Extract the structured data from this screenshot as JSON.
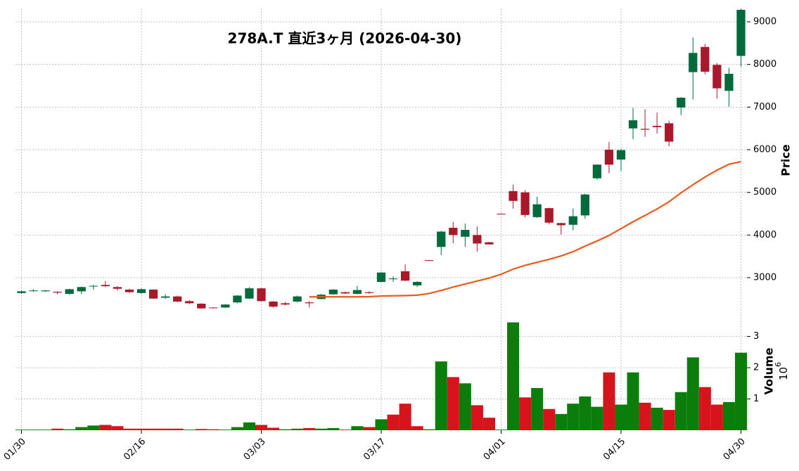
{
  "chart_data": {
    "type": "candlestick",
    "title": "278A.T  直近3ヶ月 (2026-04-30)",
    "up_color": "#006a3c",
    "down_color": "#a8192b",
    "open": [
      2640,
      2690,
      2680,
      2670,
      2620,
      2680,
      2800,
      2830,
      2780,
      2720,
      2640,
      2720,
      2530,
      2560,
      2450,
      2390,
      2300,
      2300,
      2420,
      2510,
      2750,
      2440,
      2400,
      2440,
      2420,
      2500,
      2610,
      2660,
      2620,
      2660,
      2900,
      2970,
      3150,
      2820,
      3410,
      3720,
      4170,
      3960,
      4000,
      3830,
      4500,
      5030,
      5000,
      4420,
      4630,
      4280,
      4240,
      4460,
      5330,
      6000,
      5770,
      6500,
      6490,
      6560,
      6620,
      6990,
      7820,
      8410,
      7990,
      7380,
      8200
    ],
    "high": [
      2700,
      2730,
      2710,
      2680,
      2740,
      2790,
      2830,
      2920,
      2800,
      2740,
      2750,
      2730,
      2610,
      2580,
      2470,
      2400,
      2310,
      2380,
      2590,
      2780,
      2760,
      2450,
      2430,
      2580,
      2450,
      2620,
      2730,
      2670,
      2810,
      2680,
      3130,
      3030,
      3310,
      2920,
      3415,
      4100,
      4310,
      4270,
      4200,
      3840,
      4510,
      5180,
      5050,
      4900,
      4640,
      4290,
      4620,
      4970,
      5660,
      6180,
      6020,
      6980,
      6950,
      6870,
      6680,
      7230,
      8630,
      8480,
      8030,
      7920,
      9300
    ],
    "low": [
      2620,
      2670,
      2670,
      2610,
      2600,
      2620,
      2720,
      2780,
      2700,
      2640,
      2620,
      2500,
      2500,
      2420,
      2380,
      2270,
      2280,
      2290,
      2400,
      2500,
      2440,
      2300,
      2350,
      2420,
      2300,
      2490,
      2600,
      2620,
      2610,
      2620,
      2890,
      2900,
      2920,
      2780,
      3395,
      3530,
      3810,
      3720,
      3610,
      3780,
      4490,
      4620,
      4420,
      4400,
      4250,
      4010,
      4110,
      4380,
      5300,
      5450,
      5500,
      6250,
      6300,
      6380,
      6080,
      6810,
      7180,
      7770,
      7200,
      7010,
      7950
    ],
    "close": [
      2680,
      2700,
      2700,
      2650,
      2730,
      2780,
      2810,
      2800,
      2740,
      2660,
      2730,
      2510,
      2560,
      2440,
      2400,
      2280,
      2290,
      2370,
      2580,
      2750,
      2450,
      2320,
      2370,
      2560,
      2400,
      2600,
      2720,
      2630,
      2710,
      2640,
      3120,
      2980,
      2930,
      2900,
      3400,
      4080,
      4000,
      4120,
      3800,
      3780,
      4490,
      4800,
      4470,
      4720,
      4290,
      4230,
      4440,
      4950,
      5650,
      5650,
      5990,
      6690,
      6470,
      6530,
      6190,
      7220,
      8270,
      7830,
      7440,
      7780,
      9280
    ],
    "moving_average": {
      "color": "#ea5a1c",
      "values": [
        null,
        null,
        null,
        null,
        null,
        null,
        null,
        null,
        null,
        null,
        null,
        null,
        null,
        null,
        null,
        null,
        null,
        null,
        null,
        null,
        null,
        null,
        null,
        null,
        2550,
        2550,
        2550,
        2550,
        2550,
        2555,
        2570,
        2575,
        2580,
        2590,
        2630,
        2700,
        2780,
        2850,
        2920,
        2990,
        3080,
        3200,
        3290,
        3360,
        3430,
        3510,
        3610,
        3740,
        3860,
        3990,
        4150,
        4310,
        4460,
        4610,
        4780,
        4990,
        5180,
        5360,
        5520,
        5660,
        5720
      ]
    },
    "xlim": [
      -0.5,
      60.5
    ],
    "xticks": [
      {
        "value": 0,
        "label": "01/30"
      },
      {
        "value": 10,
        "label": "02/16"
      },
      {
        "value": 20,
        "label": "03/03"
      },
      {
        "value": 30,
        "label": "03/17"
      },
      {
        "value": 40,
        "label": "04/01"
      },
      {
        "value": 50,
        "label": "04/15"
      },
      {
        "value": 60,
        "label": "04/30"
      }
    ],
    "ylim": [
      2258,
      9313
    ],
    "yticks": [
      3000,
      4000,
      5000,
      6000,
      7000,
      8000,
      9000
    ],
    "y_label": "Price",
    "grid": true,
    "volume": {
      "y_label": "Volume",
      "scale_base": "10",
      "scale_exponent": "6",
      "ylim": [
        0,
        3.8
      ],
      "yticks": [
        1,
        2,
        3
      ],
      "values": [
        0.02,
        0.02,
        0.02,
        0.05,
        0.03,
        0.1,
        0.15,
        0.17,
        0.13,
        0.05,
        0.05,
        0.05,
        0.05,
        0.05,
        0.02,
        0.04,
        0.03,
        0.02,
        0.1,
        0.25,
        0.17,
        0.08,
        0.03,
        0.05,
        0.07,
        0.05,
        0.07,
        0.02,
        0.13,
        0.1,
        0.35,
        0.5,
        0.85,
        0.13,
        0.03,
        2.2,
        1.7,
        1.5,
        0.8,
        0.4,
        0.02,
        3.45,
        1.05,
        1.35,
        0.68,
        0.52,
        0.85,
        1.08,
        0.75,
        1.85,
        0.82,
        1.85,
        0.88,
        0.72,
        0.65,
        1.22,
        2.33,
        1.38,
        0.82,
        0.9,
        2.48
      ],
      "colors": [
        "#0a7d0a",
        "#0a7d0a",
        "#0a7d0a",
        "#d7141c",
        "#0a7d0a",
        "#0a7d0a",
        "#0a7d0a",
        "#d7141c",
        "#d7141c",
        "#d7141c",
        "#d7141c",
        "#d7141c",
        "#d7141c",
        "#d7141c",
        "#0a7d0a",
        "#d7141c",
        "#d7141c",
        "#0a7d0a",
        "#0a7d0a",
        "#0a7d0a",
        "#d7141c",
        "#d7141c",
        "#0a7d0a",
        "#0a7d0a",
        "#d7141c",
        "#0a7d0a",
        "#0a7d0a",
        "#d7141c",
        "#0a7d0a",
        "#d7141c",
        "#0a7d0a",
        "#d7141c",
        "#d7141c",
        "#d7141c",
        "#0a7d0a",
        "#0a7d0a",
        "#d7141c",
        "#0a7d0a",
        "#d7141c",
        "#d7141c",
        "#0a7d0a",
        "#0a7d0a",
        "#d7141c",
        "#0a7d0a",
        "#d7141c",
        "#0a7d0a",
        "#0a7d0a",
        "#0a7d0a",
        "#0a7d0a",
        "#d7141c",
        "#0a7d0a",
        "#0a7d0a",
        "#d7141c",
        "#0a7d0a",
        "#d7141c",
        "#0a7d0a",
        "#0a7d0a",
        "#d7141c",
        "#d7141c",
        "#0a7d0a",
        "#0a7d0a"
      ]
    }
  }
}
